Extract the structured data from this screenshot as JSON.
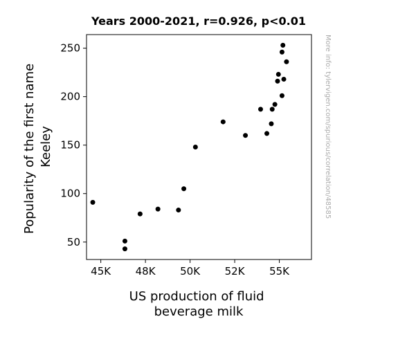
{
  "chart_data": {
    "type": "scatter",
    "title": "Years 2000-2021, r=0.926, p<0.01",
    "xlabel_lines": [
      "US production of fluid",
      "beverage milk"
    ],
    "ylabel_lines": [
      "Popularity of the first name",
      "Keeley"
    ],
    "watermark": "More info: tylervigen.com/spurious/correlation/48585",
    "xlim": [
      44200,
      56800
    ],
    "ylim": [
      32,
      264
    ],
    "x_ticks": [
      {
        "value": 45000,
        "label": "45K"
      },
      {
        "value": 47500,
        "label": "48K"
      },
      {
        "value": 50000,
        "label": "50K"
      },
      {
        "value": 52500,
        "label": "52K"
      },
      {
        "value": 55000,
        "label": "55K"
      }
    ],
    "y_ticks": [
      {
        "value": 50,
        "label": "50"
      },
      {
        "value": 100,
        "label": "100"
      },
      {
        "value": 150,
        "label": "150"
      },
      {
        "value": 200,
        "label": "200"
      },
      {
        "value": 250,
        "label": "250"
      }
    ],
    "points": [
      {
        "x": 44550,
        "y": 91
      },
      {
        "x": 46350,
        "y": 51
      },
      {
        "x": 46350,
        "y": 43
      },
      {
        "x": 47200,
        "y": 79
      },
      {
        "x": 48200,
        "y": 84
      },
      {
        "x": 49350,
        "y": 83
      },
      {
        "x": 49650,
        "y": 105
      },
      {
        "x": 50300,
        "y": 148
      },
      {
        "x": 51850,
        "y": 174
      },
      {
        "x": 53100,
        "y": 160
      },
      {
        "x": 53950,
        "y": 187
      },
      {
        "x": 54300,
        "y": 162
      },
      {
        "x": 54550,
        "y": 172
      },
      {
        "x": 54600,
        "y": 187
      },
      {
        "x": 54750,
        "y": 192
      },
      {
        "x": 54900,
        "y": 216
      },
      {
        "x": 54950,
        "y": 223
      },
      {
        "x": 55150,
        "y": 201
      },
      {
        "x": 55150,
        "y": 246
      },
      {
        "x": 55200,
        "y": 253
      },
      {
        "x": 55250,
        "y": 218
      },
      {
        "x": 55400,
        "y": 236
      }
    ]
  }
}
